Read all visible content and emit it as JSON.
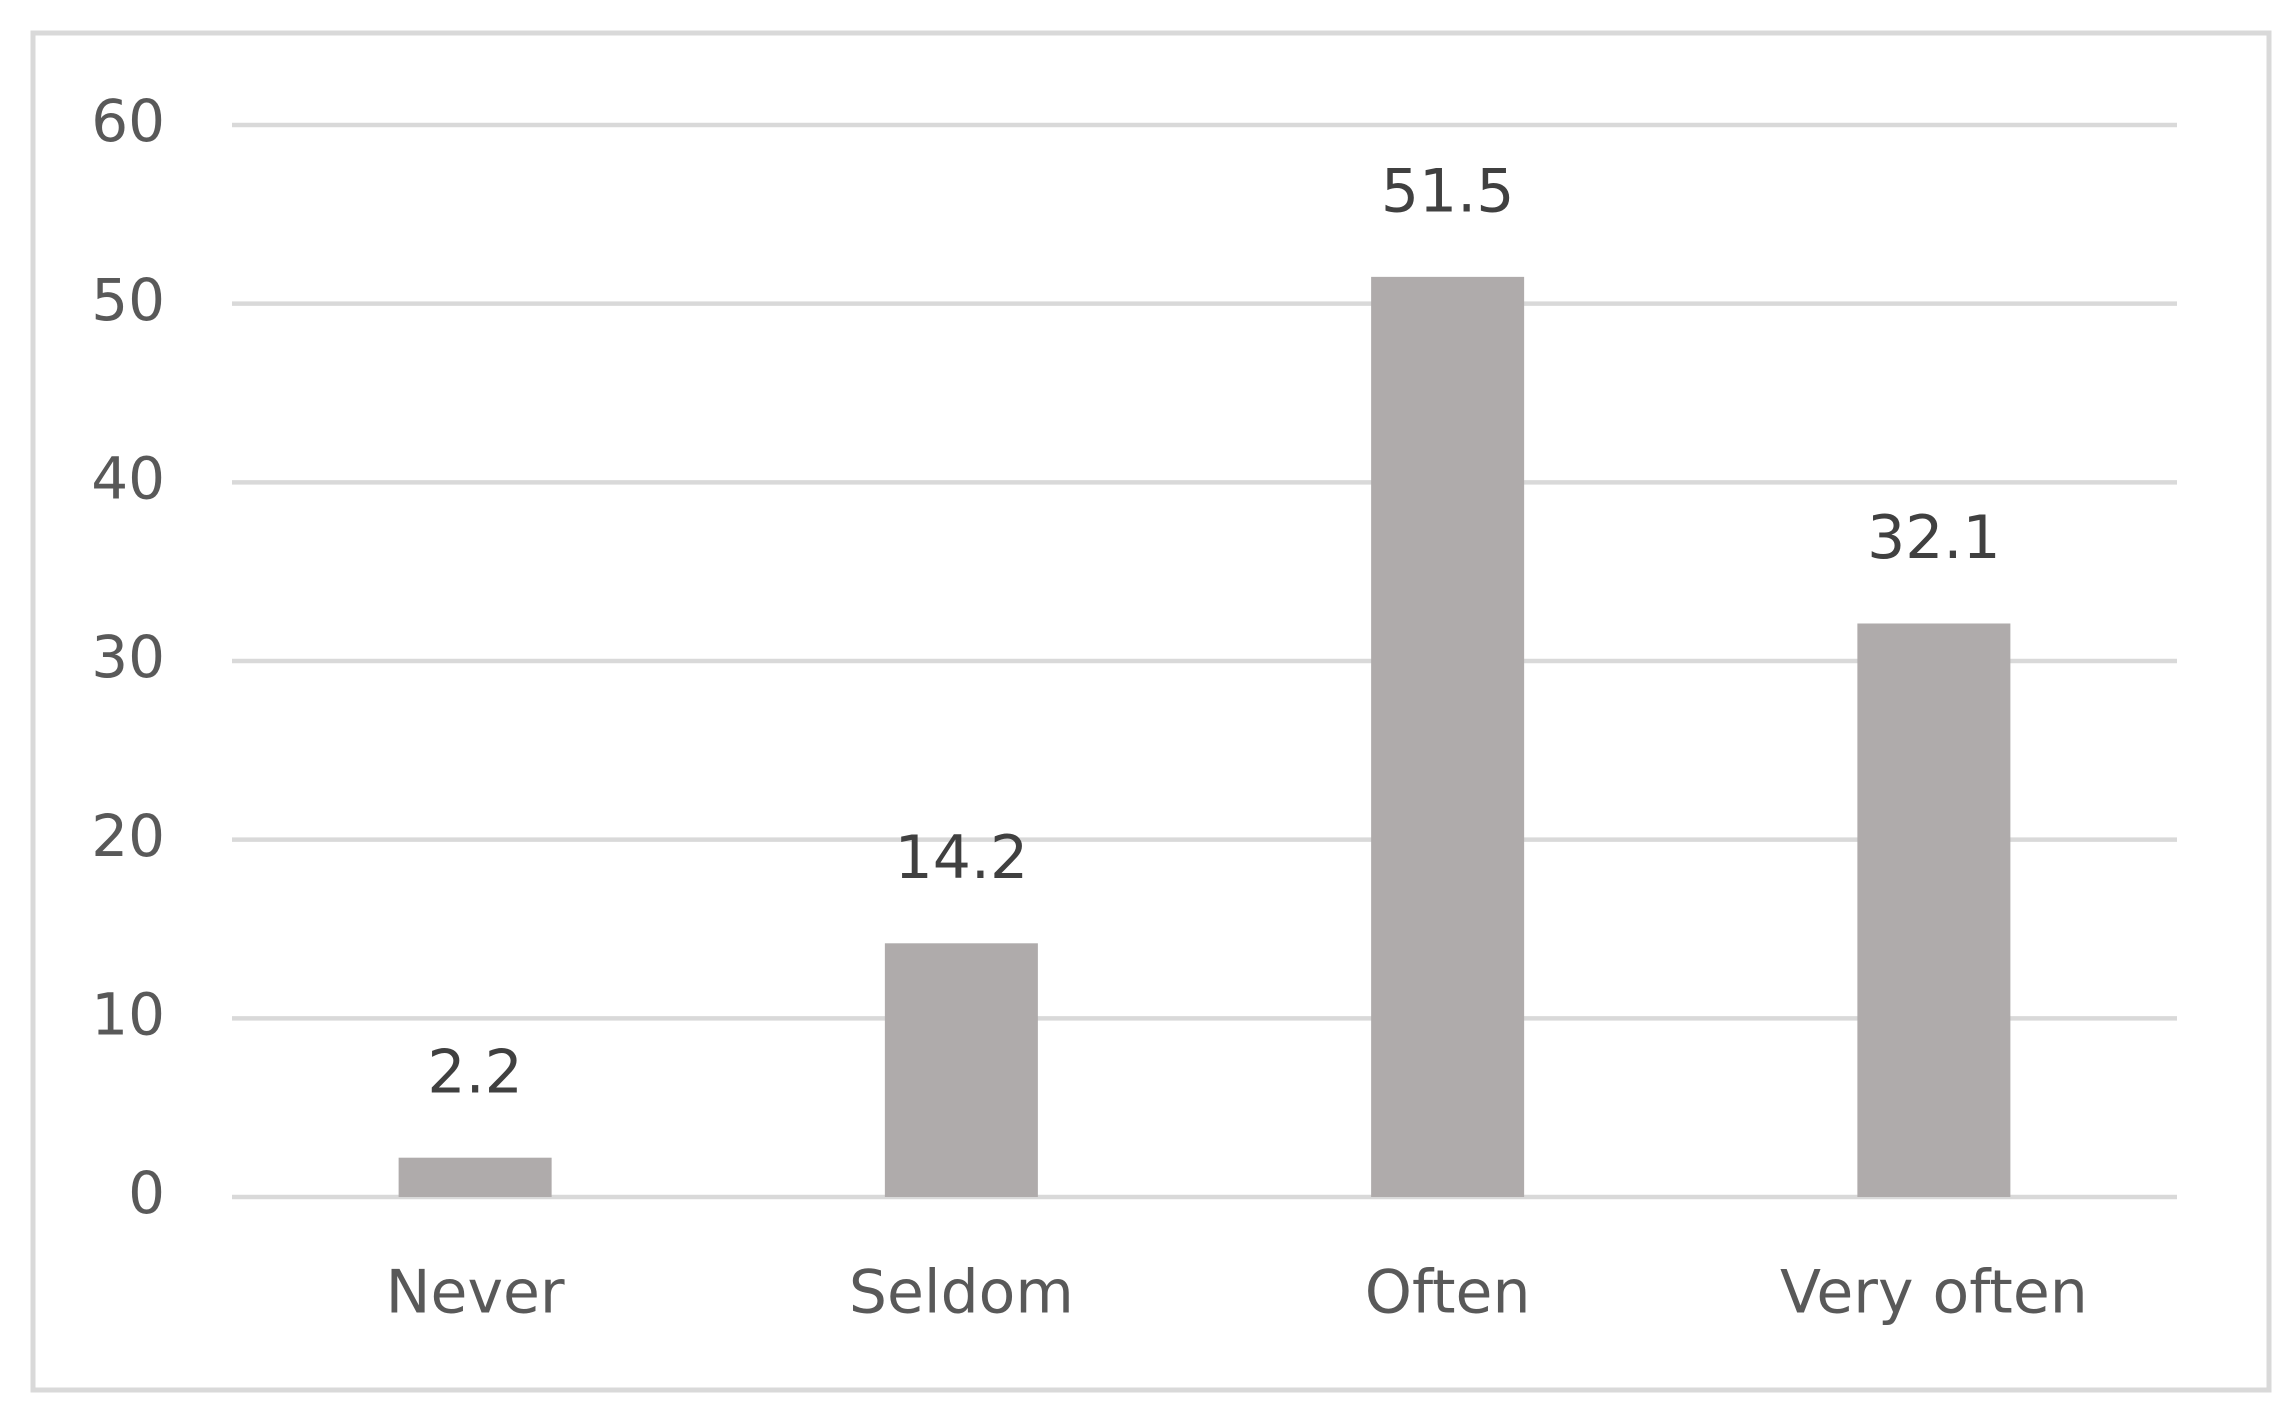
{
  "chart_data": {
    "type": "bar",
    "categories": [
      "Never",
      "Seldom",
      "Often",
      "Very often"
    ],
    "values": [
      2.2,
      14.2,
      51.5,
      32.1
    ],
    "color": "#afabab",
    "ylim": [
      0,
      60
    ],
    "yticks": [
      0,
      10,
      20,
      30,
      40,
      50,
      60
    ],
    "grid": true
  }
}
